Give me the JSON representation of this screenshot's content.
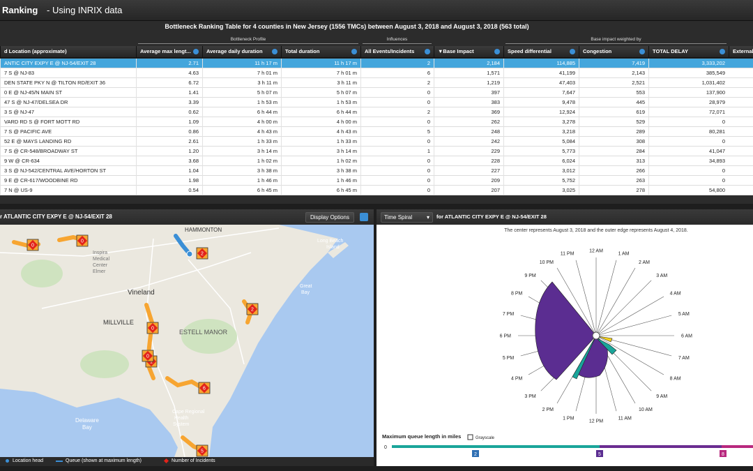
{
  "header": {
    "title_bold": "Ranking",
    "title_rest": "- Using INRIX data"
  },
  "table": {
    "caption": "Bottleneck Ranking Table for 4 counties in New Jersey (1556 TMCs) between August 3, 2018 and August 3, 2018 (563 total)",
    "groups": [
      "Bottleneck Profile",
      "Influences",
      "Base impact weighted by"
    ],
    "columns": [
      "d Location (approximate)",
      "Average max lengt...",
      "Average daily duration",
      "Total duration",
      "All Events/Incidents",
      "▼Base Impact",
      "Speed differential",
      "Congestion",
      "TOTAL DELAY",
      "External"
    ],
    "rows": [
      [
        "ANTIC CITY EXPY E @ NJ-54/EXIT 28",
        "2.71",
        "11 h 17 m",
        "11 h 17 m",
        "2",
        "2,184",
        "114,885",
        "7,419",
        "3,333,202"
      ],
      [
        "7 S @ NJ-83",
        "4.63",
        "7 h 01 m",
        "7 h 01 m",
        "6",
        "1,571",
        "41,199",
        "2,143",
        "385,549"
      ],
      [
        "DEN STATE PKY N @ TILTON RD/EXIT 36",
        "6.72",
        "3 h 11 m",
        "3 h 11 m",
        "2",
        "1,219",
        "47,403",
        "2,521",
        "1,031,402"
      ],
      [
        "0 E @ NJ-45/N MAIN ST",
        "1.41",
        "5 h 07 m",
        "5 h 07 m",
        "0",
        "397",
        "7,647",
        "553",
        "137,900"
      ],
      [
        "47 S @ NJ-47/DELSEA DR",
        "3.39",
        "1 h 53 m",
        "1 h 53 m",
        "0",
        "383",
        "9,478",
        "445",
        "28,979"
      ],
      [
        "3 S @ NJ-47",
        "0.62",
        "6 h 44 m",
        "6 h 44 m",
        "2",
        "369",
        "12,924",
        "619",
        "72,071"
      ],
      [
        "VARD RD S @ FORT MOTT RD",
        "1.09",
        "4 h 00 m",
        "4 h 00 m",
        "0",
        "262",
        "3,278",
        "529",
        "0"
      ],
      [
        "7 S @ PACIFIC AVE",
        "0.86",
        "4 h 43 m",
        "4 h 43 m",
        "5",
        "248",
        "3,218",
        "289",
        "80,281"
      ],
      [
        "52 E @ MAYS LANDING RD",
        "2.61",
        "1 h 33 m",
        "1 h 33 m",
        "0",
        "242",
        "5,084",
        "308",
        "0"
      ],
      [
        "7 S @ CR-548/BROADWAY ST",
        "1.20",
        "3 h 14 m",
        "3 h 14 m",
        "1",
        "229",
        "5,773",
        "284",
        "41,047"
      ],
      [
        "9 W @ CR-634",
        "3.68",
        "1 h 02 m",
        "1 h 02 m",
        "0",
        "228",
        "6,024",
        "313",
        "34,893"
      ],
      [
        "3 S @ NJ-542/CENTRAL AVE/HORTON ST",
        "1.04",
        "3 h 38 m",
        "3 h 38 m",
        "0",
        "227",
        "3,012",
        "266",
        "0"
      ],
      [
        "9 E @ CR-617/WOODBINE RD",
        "1.98",
        "1 h 46 m",
        "1 h 46 m",
        "0",
        "209",
        "5,752",
        "263",
        "0"
      ],
      [
        "7 N @ US-9",
        "0.54",
        "6 h 45 m",
        "6 h 45 m",
        "0",
        "207",
        "3,025",
        "278",
        "54,800"
      ]
    ]
  },
  "map": {
    "title": "r ATLANTIC CITY EXPY E @ NJ-54/EXIT 28",
    "button": "Display Options",
    "labels": [
      "HAMMONTON",
      "Long Beach",
      "Island",
      "Inspira",
      "Medical",
      "Center",
      "Elmer",
      "Vineland",
      "MILLVILLE",
      "ESTELL MANOR",
      "Great",
      "Bay",
      "Delaware",
      "Bay",
      "Cape Regional",
      "Health",
      "System"
    ],
    "incidents": [
      0,
      0,
      2,
      2,
      0,
      1,
      0,
      6,
      5
    ],
    "legend": [
      "Location head",
      "Queue (shown at maximum length)",
      "Number of Incidents"
    ]
  },
  "spiral": {
    "mode": "Time Spiral",
    "title": "for ATLANTIC CITY EXPY E @ NJ-54/EXIT 28",
    "subtitle": "The center represents August 3, 2018 and the outer edge represents August 4, 2018.",
    "hours": [
      "12 AM",
      "1 AM",
      "2 AM",
      "3 AM",
      "4 AM",
      "5 AM",
      "6 AM",
      "7 AM",
      "8 AM",
      "9 AM",
      "10 AM",
      "11 AM",
      "12 PM",
      "1 PM",
      "2 PM",
      "3 PM",
      "4 PM",
      "5 PM",
      "6 PM",
      "7 PM",
      "8 PM",
      "9 PM",
      "10 PM",
      "11 PM"
    ],
    "scale_title": "Maximum queue length in miles",
    "grayscale": "Grayscale",
    "scale_ticks": [
      0,
      2,
      5,
      8
    ]
  }
}
